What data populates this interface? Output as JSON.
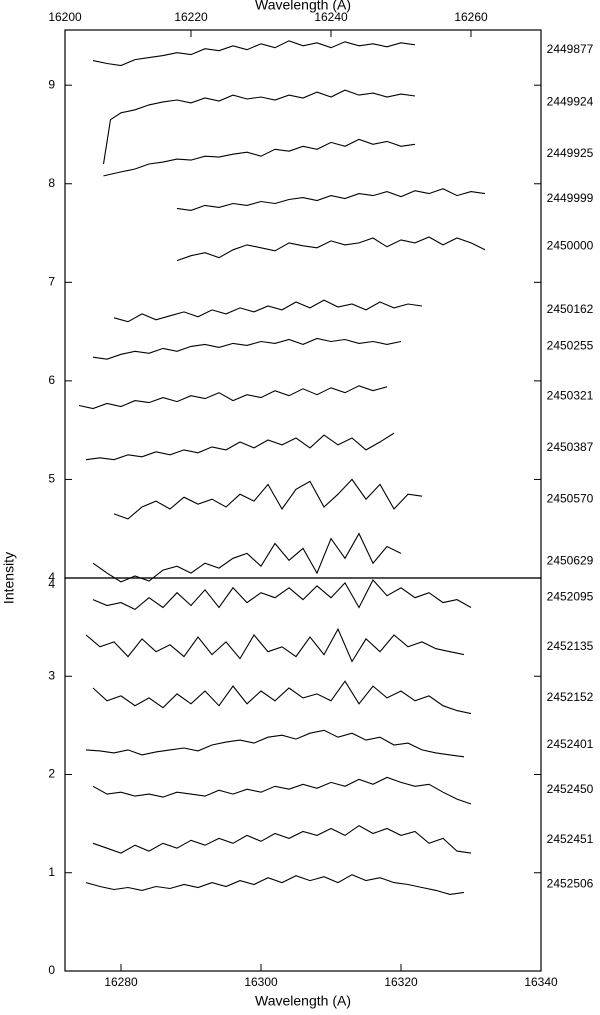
{
  "chart_data": [
    {
      "type": "line",
      "xlabel": "Wavelength (A)",
      "xlim": [
        16202,
        16270
      ],
      "xticks": [
        16200,
        16220,
        16240,
        16260
      ],
      "ylim": [
        4,
        9.56
      ],
      "yticks": [
        4,
        5,
        6,
        7,
        8,
        9
      ],
      "series": [
        {
          "name": "2449877",
          "color": "#000000",
          "x": [
            16206,
            16208,
            16210,
            16212,
            16214,
            16216,
            16218,
            16220,
            16222,
            16224,
            16226,
            16228,
            16230,
            16232,
            16234,
            16236,
            16238,
            16240,
            16242,
            16244,
            16246,
            16248,
            16250,
            16252
          ],
          "values": [
            9.25,
            9.22,
            9.2,
            9.26,
            9.28,
            9.3,
            9.33,
            9.31,
            9.37,
            9.35,
            9.4,
            9.36,
            9.42,
            9.38,
            9.45,
            9.4,
            9.43,
            9.38,
            9.44,
            9.4,
            9.42,
            9.39,
            9.43,
            9.41
          ]
        },
        {
          "name": "2449924",
          "color": "#000000",
          "x": [
            16207.5,
            16208.5,
            16210,
            16212,
            16214,
            16216,
            16218,
            16220,
            16222,
            16224,
            16226,
            16228,
            16230,
            16232,
            16234,
            16236,
            16238,
            16240,
            16242,
            16244,
            16246,
            16248,
            16250,
            16252
          ],
          "values": [
            8.2,
            8.65,
            8.72,
            8.75,
            8.8,
            8.83,
            8.85,
            8.82,
            8.87,
            8.84,
            8.9,
            8.86,
            8.88,
            8.85,
            8.9,
            8.87,
            8.93,
            8.88,
            8.95,
            8.9,
            8.92,
            8.88,
            8.91,
            8.89
          ]
        },
        {
          "name": "2449925",
          "color": "#000000",
          "x": [
            16207.5,
            16210,
            16212,
            16214,
            16216,
            16218,
            16220,
            16222,
            16224,
            16226,
            16228,
            16230,
            16232,
            16234,
            16236,
            16238,
            16240,
            16242,
            16244,
            16246,
            16248,
            16250,
            16252
          ],
          "values": [
            8.08,
            8.12,
            8.15,
            8.2,
            8.22,
            8.25,
            8.24,
            8.28,
            8.27,
            8.3,
            8.32,
            8.28,
            8.35,
            8.33,
            8.38,
            8.35,
            8.42,
            8.38,
            8.45,
            8.4,
            8.43,
            8.38,
            8.4
          ]
        },
        {
          "name": "2449999",
          "color": "#000000",
          "x": [
            16218,
            16220,
            16222,
            16224,
            16226,
            16228,
            16230,
            16232,
            16234,
            16236,
            16238,
            16240,
            16242,
            16244,
            16246,
            16248,
            16250,
            16252,
            16254,
            16256,
            16258,
            16260,
            16262
          ],
          "values": [
            7.75,
            7.73,
            7.78,
            7.76,
            7.8,
            7.78,
            7.82,
            7.8,
            7.84,
            7.86,
            7.83,
            7.88,
            7.85,
            7.9,
            7.88,
            7.92,
            7.87,
            7.93,
            7.9,
            7.95,
            7.88,
            7.92,
            7.9
          ]
        },
        {
          "name": "2450000",
          "color": "#000000",
          "x": [
            16218,
            16220,
            16222,
            16224,
            16226,
            16228,
            16230,
            16232,
            16234,
            16236,
            16238,
            16240,
            16242,
            16244,
            16246,
            16248,
            16250,
            16252,
            16254,
            16256,
            16258,
            16260,
            16262
          ],
          "values": [
            7.22,
            7.27,
            7.3,
            7.25,
            7.33,
            7.38,
            7.35,
            7.32,
            7.4,
            7.37,
            7.35,
            7.42,
            7.38,
            7.4,
            7.45,
            7.36,
            7.43,
            7.4,
            7.46,
            7.38,
            7.45,
            7.4,
            7.33
          ]
        },
        {
          "name": "2450162",
          "color": "#000000",
          "x": [
            16209,
            16211,
            16213,
            16215,
            16217,
            16219,
            16221,
            16223,
            16225,
            16227,
            16229,
            16231,
            16233,
            16235,
            16237,
            16239,
            16241,
            16243,
            16245,
            16247,
            16249,
            16251,
            16253
          ],
          "values": [
            6.64,
            6.6,
            6.68,
            6.62,
            6.66,
            6.7,
            6.65,
            6.72,
            6.68,
            6.74,
            6.7,
            6.76,
            6.72,
            6.8,
            6.74,
            6.82,
            6.75,
            6.78,
            6.72,
            6.8,
            6.74,
            6.78,
            6.76
          ]
        },
        {
          "name": "2450255",
          "color": "#000000",
          "x": [
            16206,
            16208,
            16210,
            16212,
            16214,
            16216,
            16218,
            16220,
            16222,
            16224,
            16226,
            16228,
            16230,
            16232,
            16234,
            16236,
            16238,
            16240,
            16242,
            16244,
            16246,
            16248,
            16250
          ],
          "values": [
            6.24,
            6.22,
            6.27,
            6.3,
            6.28,
            6.33,
            6.3,
            6.35,
            6.37,
            6.34,
            6.38,
            6.36,
            6.4,
            6.38,
            6.42,
            6.37,
            6.43,
            6.4,
            6.42,
            6.38,
            6.4,
            6.37,
            6.4
          ]
        },
        {
          "name": "2450321",
          "color": "#000000",
          "x": [
            16204,
            16206,
            16208,
            16210,
            16212,
            16214,
            16216,
            16218,
            16220,
            16222,
            16224,
            16226,
            16228,
            16230,
            16232,
            16234,
            16236,
            16238,
            16240,
            16242,
            16244,
            16246,
            16248
          ],
          "values": [
            5.75,
            5.72,
            5.77,
            5.74,
            5.8,
            5.78,
            5.83,
            5.79,
            5.85,
            5.82,
            5.88,
            5.8,
            5.86,
            5.83,
            5.9,
            5.85,
            5.92,
            5.86,
            5.93,
            5.88,
            5.95,
            5.9,
            5.94
          ]
        },
        {
          "name": "2450387",
          "color": "#000000",
          "x": [
            16205,
            16207,
            16209,
            16211,
            16213,
            16215,
            16217,
            16219,
            16221,
            16223,
            16225,
            16227,
            16229,
            16231,
            16233,
            16235,
            16237,
            16239,
            16241,
            16243,
            16245,
            16247,
            16249
          ],
          "values": [
            5.2,
            5.22,
            5.2,
            5.25,
            5.23,
            5.28,
            5.25,
            5.3,
            5.27,
            5.33,
            5.3,
            5.38,
            5.32,
            5.4,
            5.35,
            5.42,
            5.32,
            5.45,
            5.35,
            5.42,
            5.3,
            5.38,
            5.47
          ]
        },
        {
          "name": "2450570",
          "color": "#000000",
          "x": [
            16209,
            16211,
            16213,
            16215,
            16217,
            16219,
            16221,
            16223,
            16225,
            16227,
            16229,
            16231,
            16233,
            16235,
            16237,
            16239,
            16241,
            16243,
            16245,
            16247,
            16249,
            16251,
            16253
          ],
          "values": [
            4.65,
            4.6,
            4.72,
            4.78,
            4.7,
            4.82,
            4.75,
            4.8,
            4.72,
            4.85,
            4.78,
            4.95,
            4.7,
            4.9,
            4.98,
            4.72,
            4.85,
            5.0,
            4.8,
            4.95,
            4.7,
            4.85,
            4.83
          ]
        },
        {
          "name": "2450629",
          "color": "#000000",
          "x": [
            16206,
            16208,
            16210,
            16212,
            16214,
            16216,
            16218,
            16220,
            16222,
            16224,
            16226,
            16228,
            16230,
            16232,
            16234,
            16236,
            16238,
            16240,
            16242,
            16244,
            16246,
            16248,
            16250
          ],
          "values": [
            4.15,
            4.05,
            3.96,
            4.02,
            3.97,
            4.08,
            4.12,
            4.05,
            4.15,
            4.1,
            4.2,
            4.25,
            4.12,
            4.35,
            4.18,
            4.3,
            4.05,
            4.4,
            4.2,
            4.45,
            4.15,
            4.32,
            4.25
          ]
        }
      ]
    },
    {
      "type": "line",
      "xlabel": "Wavelength (A)",
      "ylabel": "Intensity",
      "xlim": [
        16272,
        16340
      ],
      "xticks": [
        16280,
        16300,
        16320,
        16340
      ],
      "ylim": [
        0,
        4
      ],
      "yticks": [
        0,
        1,
        2,
        3,
        4
      ],
      "series": [
        {
          "name": "2452095",
          "color": "#000000",
          "x": [
            16276,
            16278,
            16280,
            16282,
            16284,
            16286,
            16288,
            16290,
            16292,
            16294,
            16296,
            16298,
            16300,
            16302,
            16304,
            16306,
            16308,
            16310,
            16312,
            16314,
            16316,
            16318,
            16320,
            16322,
            16324,
            16326,
            16328,
            16330
          ],
          "values": [
            3.78,
            3.72,
            3.75,
            3.68,
            3.8,
            3.7,
            3.85,
            3.72,
            3.88,
            3.7,
            3.9,
            3.75,
            3.85,
            3.8,
            3.9,
            3.78,
            3.92,
            3.8,
            3.95,
            3.7,
            3.98,
            3.82,
            3.9,
            3.8,
            3.85,
            3.75,
            3.78,
            3.7
          ]
        },
        {
          "name": "2452135",
          "color": "#000000",
          "x": [
            16275,
            16277,
            16279,
            16281,
            16283,
            16285,
            16287,
            16289,
            16291,
            16293,
            16295,
            16297,
            16299,
            16301,
            16303,
            16305,
            16307,
            16309,
            16311,
            16313,
            16315,
            16317,
            16319,
            16321,
            16323,
            16325,
            16327,
            16329
          ],
          "values": [
            3.42,
            3.3,
            3.35,
            3.2,
            3.38,
            3.25,
            3.32,
            3.2,
            3.4,
            3.22,
            3.35,
            3.18,
            3.42,
            3.25,
            3.3,
            3.2,
            3.4,
            3.22,
            3.48,
            3.15,
            3.38,
            3.25,
            3.42,
            3.3,
            3.35,
            3.28,
            3.25,
            3.22
          ]
        },
        {
          "name": "2452152",
          "color": "#000000",
          "x": [
            16276,
            16278,
            16280,
            16282,
            16284,
            16286,
            16288,
            16290,
            16292,
            16294,
            16296,
            16298,
            16300,
            16302,
            16304,
            16306,
            16308,
            16310,
            16312,
            16314,
            16316,
            16318,
            16320,
            16322,
            16324,
            16326,
            16328,
            16330
          ],
          "values": [
            2.88,
            2.75,
            2.8,
            2.7,
            2.78,
            2.68,
            2.82,
            2.72,
            2.85,
            2.7,
            2.9,
            2.72,
            2.85,
            2.75,
            2.88,
            2.78,
            2.82,
            2.75,
            2.95,
            2.72,
            2.9,
            2.78,
            2.85,
            2.75,
            2.8,
            2.7,
            2.65,
            2.62
          ]
        },
        {
          "name": "2452401",
          "color": "#000000",
          "x": [
            16275,
            16277,
            16279,
            16281,
            16283,
            16285,
            16287,
            16289,
            16291,
            16293,
            16295,
            16297,
            16299,
            16301,
            16303,
            16305,
            16307,
            16309,
            16311,
            16313,
            16315,
            16317,
            16319,
            16321,
            16323,
            16325,
            16327,
            16329
          ],
          "values": [
            2.25,
            2.24,
            2.22,
            2.25,
            2.2,
            2.23,
            2.25,
            2.27,
            2.24,
            2.3,
            2.33,
            2.35,
            2.32,
            2.38,
            2.4,
            2.36,
            2.42,
            2.45,
            2.38,
            2.42,
            2.35,
            2.38,
            2.3,
            2.32,
            2.25,
            2.22,
            2.2,
            2.18
          ]
        },
        {
          "name": "2452450",
          "color": "#000000",
          "x": [
            16276,
            16278,
            16280,
            16282,
            16284,
            16286,
            16288,
            16290,
            16292,
            16294,
            16296,
            16298,
            16300,
            16302,
            16304,
            16306,
            16308,
            16310,
            16312,
            16314,
            16316,
            16318,
            16320,
            16322,
            16324,
            16326,
            16328,
            16330
          ],
          "values": [
            1.88,
            1.8,
            1.82,
            1.78,
            1.8,
            1.77,
            1.82,
            1.8,
            1.78,
            1.84,
            1.8,
            1.85,
            1.82,
            1.88,
            1.85,
            1.9,
            1.86,
            1.92,
            1.88,
            1.95,
            1.9,
            1.97,
            1.92,
            1.88,
            1.9,
            1.82,
            1.75,
            1.7
          ]
        },
        {
          "name": "2452451",
          "color": "#000000",
          "x": [
            16276,
            16278,
            16280,
            16282,
            16284,
            16286,
            16288,
            16290,
            16292,
            16294,
            16296,
            16298,
            16300,
            16302,
            16304,
            16306,
            16308,
            16310,
            16312,
            16314,
            16316,
            16318,
            16320,
            16322,
            16324,
            16326,
            16328,
            16330
          ],
          "values": [
            1.3,
            1.25,
            1.2,
            1.28,
            1.22,
            1.3,
            1.25,
            1.33,
            1.28,
            1.35,
            1.3,
            1.38,
            1.32,
            1.4,
            1.35,
            1.42,
            1.38,
            1.45,
            1.38,
            1.48,
            1.4,
            1.45,
            1.38,
            1.42,
            1.3,
            1.35,
            1.22,
            1.2
          ]
        },
        {
          "name": "2452506",
          "color": "#000000",
          "x": [
            16275,
            16277,
            16279,
            16281,
            16283,
            16285,
            16287,
            16289,
            16291,
            16293,
            16295,
            16297,
            16299,
            16301,
            16303,
            16305,
            16307,
            16309,
            16311,
            16313,
            16315,
            16317,
            16319,
            16321,
            16323,
            16325,
            16327,
            16329
          ],
          "values": [
            0.9,
            0.86,
            0.83,
            0.85,
            0.82,
            0.86,
            0.84,
            0.88,
            0.85,
            0.9,
            0.86,
            0.92,
            0.88,
            0.95,
            0.9,
            0.97,
            0.92,
            0.96,
            0.9,
            0.98,
            0.92,
            0.95,
            0.9,
            0.88,
            0.85,
            0.82,
            0.78,
            0.8
          ]
        }
      ]
    }
  ]
}
